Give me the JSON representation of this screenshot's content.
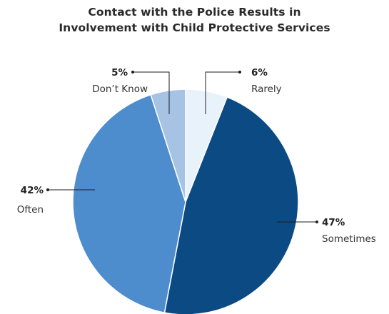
{
  "chart_data": {
    "type": "pie",
    "title": [
      "Contact with the Police Results in",
      "Involvement with Child Protective Services"
    ],
    "slices": [
      {
        "label": "Rarely",
        "value": 6,
        "display": "6%",
        "color": "#e8f2fb",
        "label_side": "right"
      },
      {
        "label": "Sometimes",
        "value": 47,
        "display": "47%",
        "color": "#0c4a84",
        "label_side": "right"
      },
      {
        "label": "Often",
        "value": 42,
        "display": "42%",
        "color": "#4e8dcd",
        "label_side": "left"
      },
      {
        "label": "Don’t Know",
        "value": 5,
        "display": "5%",
        "color": "#a6c3e4",
        "label_side": "left"
      }
    ],
    "start_angle_deg": 0,
    "direction": "clockwise",
    "legend": "none",
    "slice_border_color": "#ffffff"
  }
}
